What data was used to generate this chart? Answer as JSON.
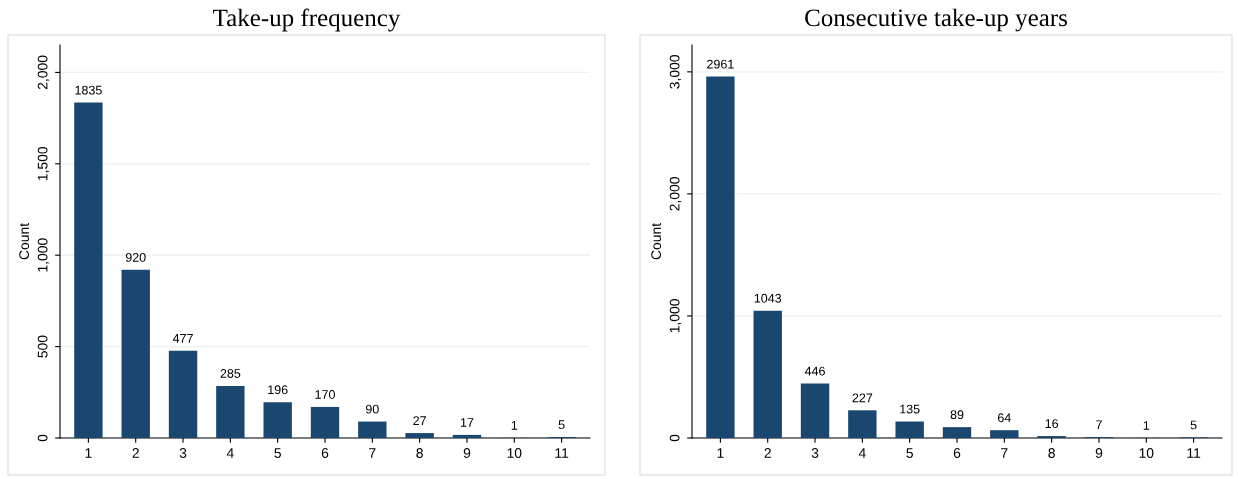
{
  "chart_data": [
    {
      "type": "bar",
      "title": "Take-up frequency",
      "ylabel": "Count",
      "categories": [
        "1",
        "2",
        "3",
        "4",
        "5",
        "6",
        "7",
        "8",
        "9",
        "10",
        "11"
      ],
      "values": [
        1835,
        920,
        477,
        285,
        196,
        170,
        90,
        27,
        17,
        1,
        5
      ],
      "color": "#1a476f",
      "data_labels": true,
      "grid": "y",
      "ylim": [
        0,
        2150
      ],
      "yticks": [
        0,
        500,
        {
          "value": 1000,
          "label": "1,000"
        },
        {
          "value": 1500,
          "label": "1,500"
        },
        {
          "value": 2000,
          "label": "2,000"
        }
      ]
    },
    {
      "type": "bar",
      "title": "Consecutive take-up years",
      "ylabel": "Count",
      "categories": [
        "1",
        "2",
        "3",
        "4",
        "5",
        "6",
        "7",
        "8",
        "9",
        "10",
        "11"
      ],
      "values": [
        2961,
        1043,
        446,
        227,
        135,
        89,
        64,
        16,
        7,
        1,
        5
      ],
      "color": "#1a476f",
      "data_labels": true,
      "grid": "y",
      "ylim": [
        0,
        3220
      ],
      "yticks": [
        0,
        {
          "value": 1000,
          "label": "1,000"
        },
        {
          "value": 2000,
          "label": "2,000"
        },
        {
          "value": 3000,
          "label": "3,000"
        }
      ]
    }
  ]
}
